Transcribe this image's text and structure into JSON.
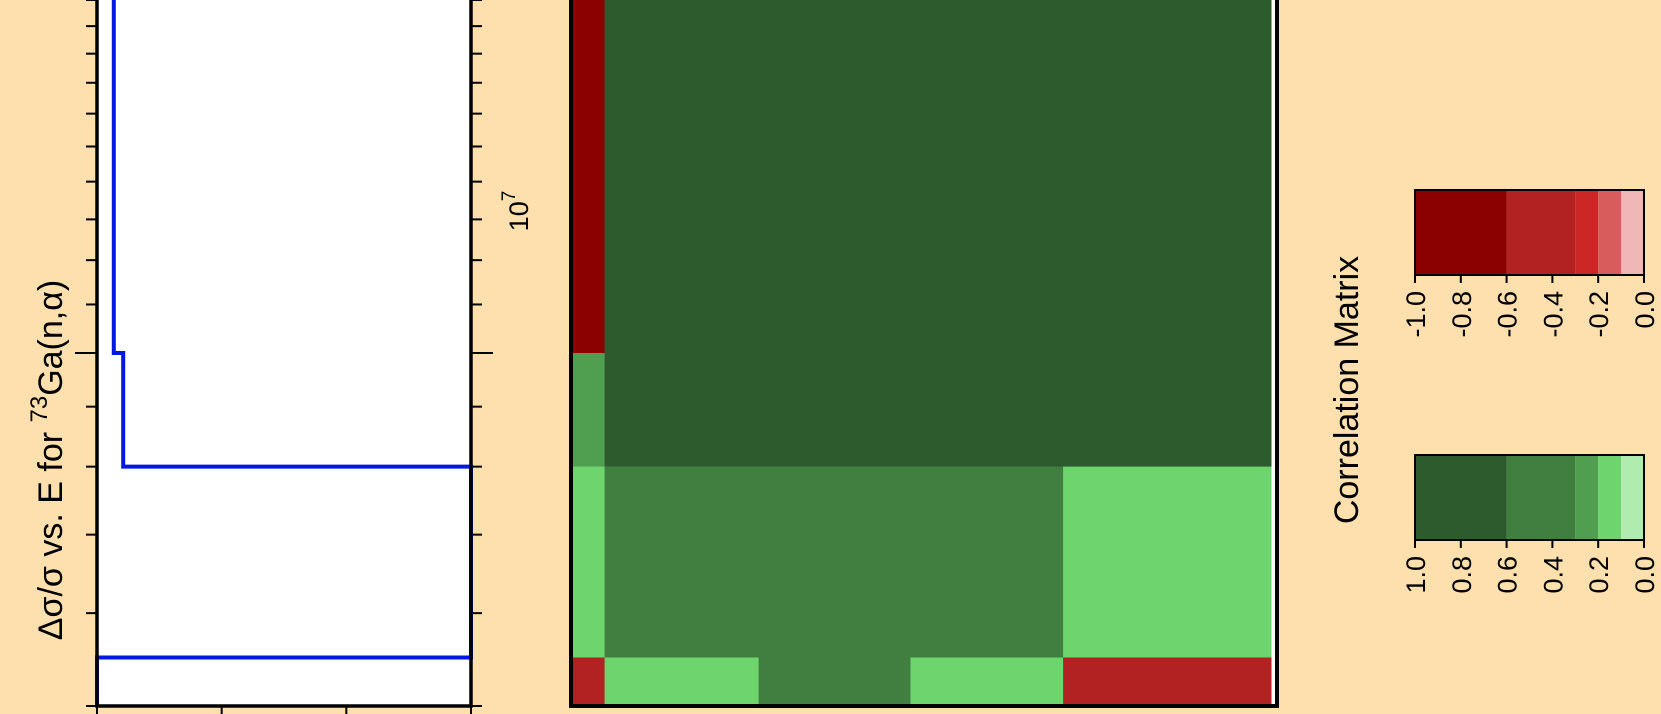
{
  "figure": {
    "background": "#fde0ad",
    "colors": {
      "frame": "#000000",
      "step_line": "#0018e0",
      "plot_bg": "#ffffff"
    }
  },
  "chart_data": [
    {
      "type": "line",
      "title": "",
      "ylabel": "Δσ/σ vs. E for ",
      "ylabel_isotope": "73",
      "ylabel_reaction": "Ga(n,α)",
      "energy_axis_label": "10",
      "energy_axis_label_exponent": "7",
      "energy_scale": "log",
      "energy_range": [
        5000000,
        20000000
      ],
      "series": [
        {
          "step": true,
          "energy_bin_edges": [
            5000000,
            5500000,
            8000000,
            10000000,
            20000000
          ],
          "relative_uncertainty": [
            0.0,
            1.0,
            0.07,
            0.045
          ],
          "uncertainty_range": [
            0,
            1
          ]
        }
      ]
    },
    {
      "type": "heatmap",
      "title": "Correlation Matrix",
      "energy_bin_edges": [
        5000000,
        5500000,
        8000000,
        10000000,
        20000000
      ],
      "block_edges": [
        0.0,
        0.048,
        0.268,
        0.485,
        0.703,
        1.0
      ],
      "matrix": [
        [
          -1.0,
          1.0,
          1.0,
          1.0,
          1.0
        ],
        [
          0.2,
          0.7,
          1.0,
          1.0,
          0.7
        ],
        [
          0.1,
          0.5,
          0.5,
          0.5,
          0.1
        ],
        [
          -0.3,
          0.1,
          0.5,
          0.1,
          -0.3
        ]
      ],
      "colorbars": [
        {
          "name": "negative",
          "tick_labels": [
            "-1.0",
            "-0.8",
            "-0.6",
            "-0.4",
            "-0.2",
            "0.0"
          ],
          "segments": [
            {
              "from": -1.0,
              "to": -0.6,
              "color": "#8b0000"
            },
            {
              "from": -0.6,
              "to": -0.3,
              "color": "#b22222"
            },
            {
              "from": -0.3,
              "to": -0.2,
              "color": "#cd2626"
            },
            {
              "from": -0.2,
              "to": -0.1,
              "color": "#d95c5c"
            },
            {
              "from": -0.1,
              "to": 0.0,
              "color": "#efb7b7"
            }
          ]
        },
        {
          "name": "positive",
          "tick_labels": [
            "1.0",
            "0.8",
            "0.6",
            "0.4",
            "0.2",
            "0.0"
          ],
          "segments": [
            {
              "from": 1.0,
              "to": 0.6,
              "color": "#2d5b2d"
            },
            {
              "from": 0.6,
              "to": 0.3,
              "color": "#407f40"
            },
            {
              "from": 0.3,
              "to": 0.2,
              "color": "#509f50"
            },
            {
              "from": 0.2,
              "to": 0.1,
              "color": "#6ed46e"
            },
            {
              "from": 0.1,
              "to": 0.0,
              "color": "#b0ecb0"
            }
          ]
        }
      ]
    }
  ]
}
